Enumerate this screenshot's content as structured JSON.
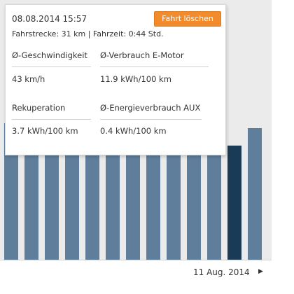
{
  "trip": {
    "datetime": "08.08.2014 15:57",
    "delete_label": "Fahrt löschen",
    "summary": "Fahrstrecke: 31 km | Fahrzeit: 0:44 Std.",
    "avg_speed_label": "Ø-Geschwindigkeit",
    "avg_speed_value": "43 km/h",
    "consumption_label": "Ø-Verbrauch E-Motor",
    "consumption_value": "11.9 kWh/100 km",
    "recuperation_label": "Rekuperation",
    "recuperation_value": "3.7 kWh/100 km",
    "aux_label": "Ø-Energieverbrauch AUX",
    "aux_value": "0.4 kWh/100 km"
  },
  "nav": {
    "date": "11 Aug. 2014",
    "next_icon": "triangle-right-icon"
  },
  "colors": {
    "bar": "#5e7e9b",
    "bar_selected": "#1b3a56",
    "chart_bg": "#ebebeb",
    "button": "#f28b2c"
  },
  "chart_data": {
    "type": "bar",
    "categories": [
      "",
      "",
      "",
      "",
      "",
      "",
      "",
      "",
      "",
      "",
      "",
      "",
      ""
    ],
    "values": [
      195,
      195,
      195,
      195,
      195,
      195,
      195,
      195,
      195,
      195,
      195,
      163,
      188
    ],
    "selected_index": 11,
    "ylim": [
      0,
      371
    ],
    "grid": false,
    "xlabel": "",
    "ylabel": ""
  }
}
